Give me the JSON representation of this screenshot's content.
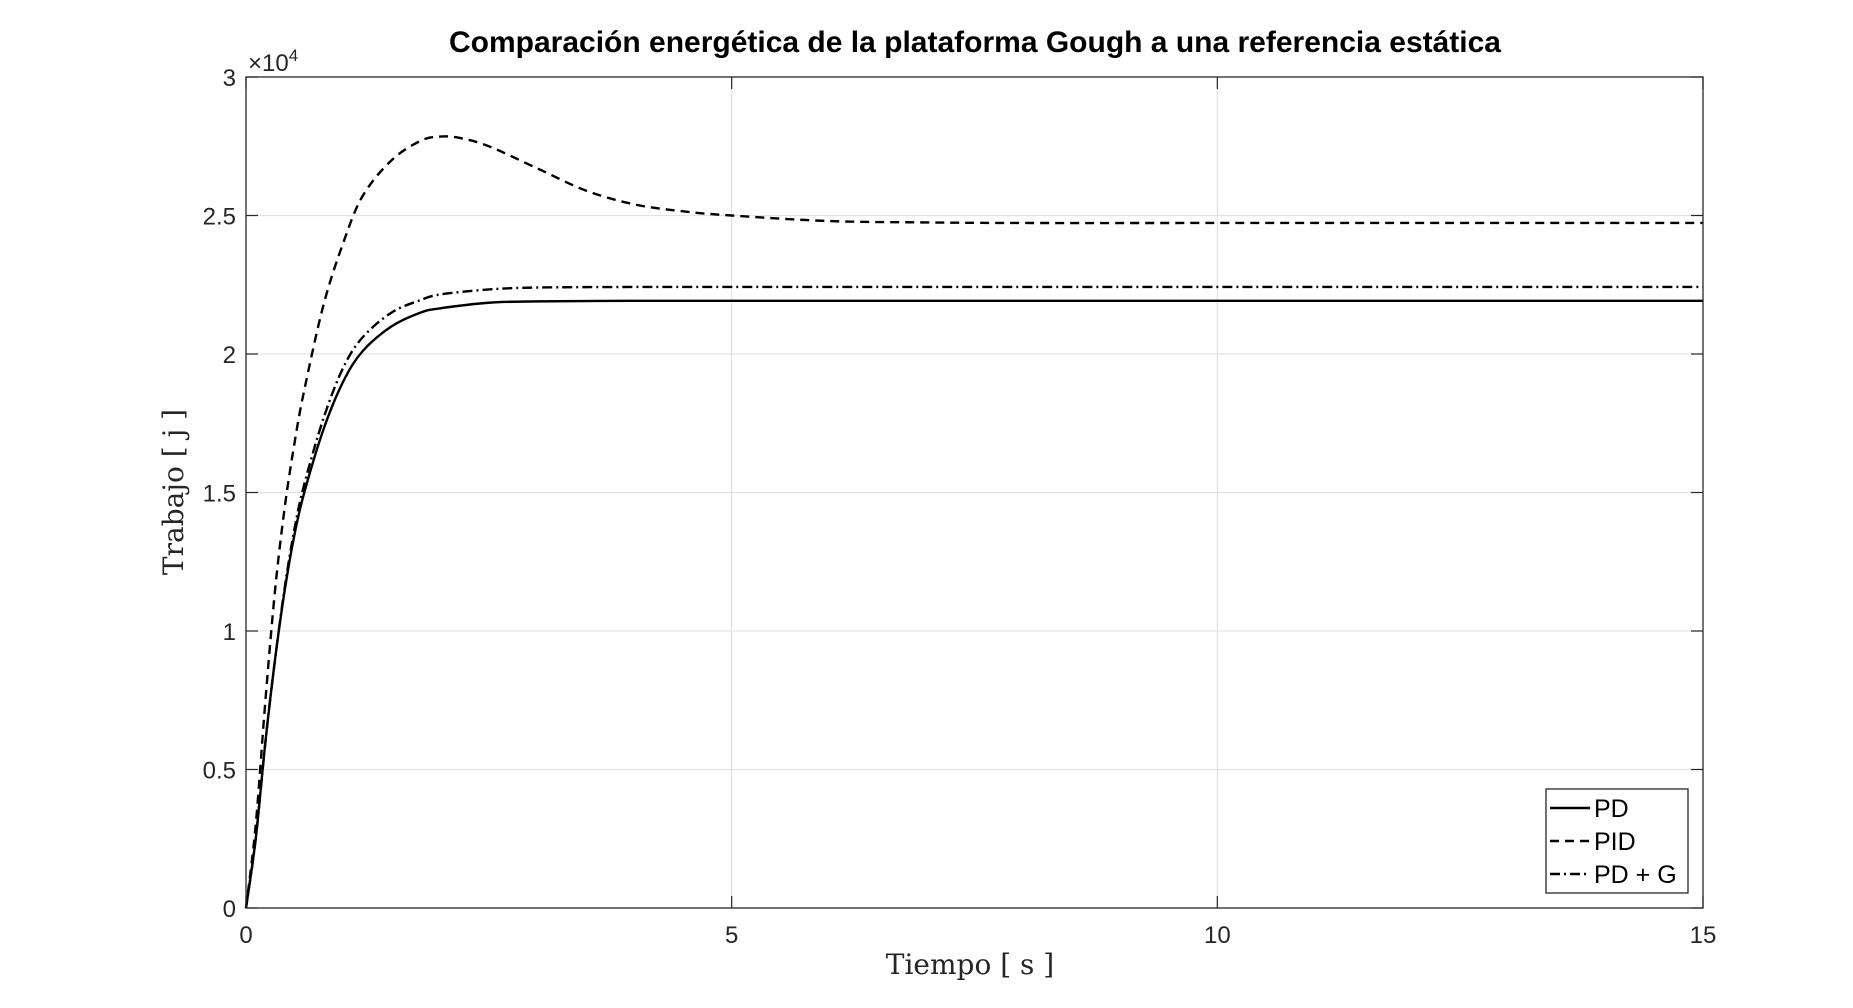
{
  "chart_data": {
    "type": "line",
    "title": "Comparación energética de la plataforma Gough a una referencia estática",
    "xlabel": "Tiempo [ s ]",
    "ylabel": "Trabajo [ j ]",
    "xlim": [
      0,
      15
    ],
    "ylim": [
      0,
      30000
    ],
    "xticks": [
      0,
      5,
      10,
      15
    ],
    "xtick_labels": [
      "0",
      "5",
      "10",
      "15"
    ],
    "yticks": [
      0,
      5000,
      10000,
      15000,
      20000,
      25000,
      30000
    ],
    "ytick_labels": [
      "0",
      "0.5",
      "1",
      "1.5",
      "2",
      "2.5",
      "3"
    ],
    "y_exponent_label": "×10",
    "y_exponent_power": "4",
    "grid": true,
    "legend_position": "bottom-right",
    "series": [
      {
        "name": "PD",
        "line_style": "solid",
        "color": "#000000",
        "x": [
          0,
          0.1,
          0.2,
          0.3,
          0.4,
          0.5,
          0.6,
          0.8,
          1.0,
          1.2,
          1.5,
          1.8,
          2.0,
          2.5,
          3.0,
          4.0,
          5.0,
          7.0,
          10.0,
          12.0,
          15.0
        ],
        "y": [
          0,
          2500,
          6000,
          9000,
          11500,
          13500,
          15000,
          17300,
          19000,
          20100,
          21000,
          21500,
          21650,
          21850,
          21900,
          21920,
          21920,
          21920,
          21920,
          21920,
          21920
        ]
      },
      {
        "name": "PID",
        "line_style": "dashed",
        "color": "#000000",
        "x": [
          0,
          0.1,
          0.2,
          0.3,
          0.4,
          0.5,
          0.6,
          0.8,
          1.0,
          1.2,
          1.5,
          1.8,
          2.0,
          2.2,
          2.5,
          3.0,
          3.5,
          4.0,
          4.5,
          5.0,
          6.0,
          7.0,
          8.0,
          10.0,
          12.0,
          15.0
        ],
        "y": [
          0,
          3000,
          7500,
          11500,
          14500,
          16800,
          18700,
          21800,
          24000,
          25700,
          27000,
          27700,
          27850,
          27800,
          27500,
          26700,
          25900,
          25400,
          25150,
          25000,
          24800,
          24750,
          24730,
          24730,
          24730,
          24730
        ]
      },
      {
        "name": "PD + G",
        "line_style": "dashdot",
        "color": "#000000",
        "x": [
          0,
          0.1,
          0.2,
          0.3,
          0.4,
          0.5,
          0.6,
          0.8,
          1.0,
          1.2,
          1.5,
          1.8,
          2.0,
          2.5,
          3.0,
          4.0,
          5.0,
          7.0,
          10.0,
          12.0,
          15.0
        ],
        "y": [
          0,
          2500,
          6000,
          9000,
          11600,
          13700,
          15300,
          17700,
          19500,
          20600,
          21500,
          21950,
          22150,
          22330,
          22400,
          22420,
          22420,
          22420,
          22420,
          22420,
          22420
        ]
      }
    ]
  }
}
